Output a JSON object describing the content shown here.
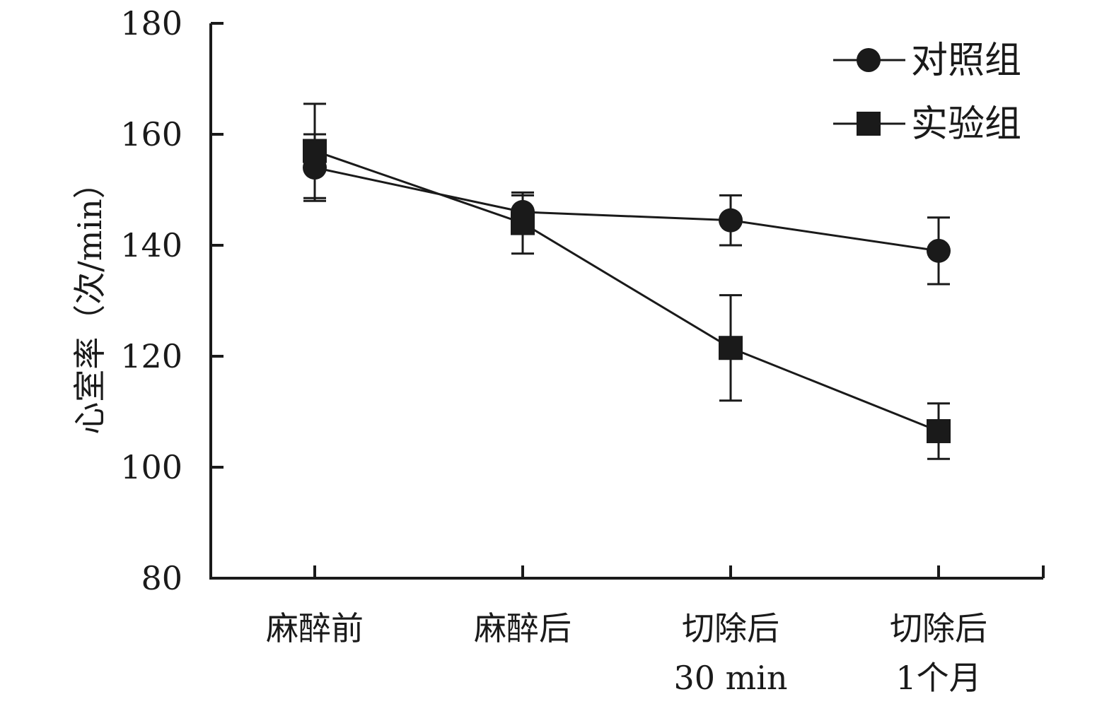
{
  "chart_data": {
    "type": "line",
    "categories": [
      [
        "麻醉前"
      ],
      [
        "麻醉后"
      ],
      [
        "切除后",
        "30 min"
      ],
      [
        "切除后",
        "1个月"
      ]
    ],
    "ylabel": "心室率（次/min）",
    "ylim": [
      80,
      180
    ],
    "yticks": [
      80,
      100,
      120,
      140,
      160,
      180
    ],
    "legend_position": "top-right",
    "grid": false,
    "series": [
      {
        "name": "对照组",
        "marker": "circle",
        "values": [
          154,
          146,
          144.5,
          139
        ],
        "errors": [
          6,
          3,
          4.5,
          6
        ]
      },
      {
        "name": "实验组",
        "marker": "square",
        "values": [
          157,
          144,
          121.5,
          106.5
        ],
        "errors": [
          8.5,
          5.5,
          9.5,
          5
        ]
      }
    ],
    "colors": {
      "ink": "#1a1a1a"
    }
  }
}
